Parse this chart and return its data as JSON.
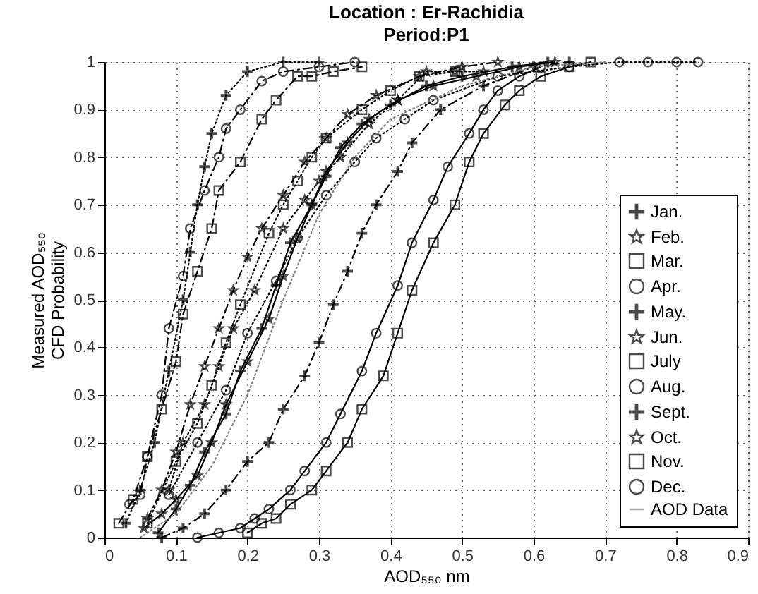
{
  "chart_data": {
    "type": "line",
    "title": "Location : Er-Rachidia",
    "subtitle": "Period:P1",
    "xlabel": "AOD₅₅₀ nm",
    "ylabel": "Measured AOD₅₅₀\nCFD Probability",
    "xlim": [
      0,
      0.9
    ],
    "ylim": [
      0,
      1
    ],
    "xticks": [
      0,
      0.1,
      0.2,
      0.3,
      0.4,
      0.5,
      0.6,
      0.7,
      0.8,
      0.9
    ],
    "yticks": [
      0,
      0.1,
      0.2,
      0.3,
      0.4,
      0.5,
      0.6,
      0.7,
      0.8,
      0.9,
      1
    ],
    "grid": true,
    "legend": "bottom right",
    "series": [
      {
        "name": "Jan.",
        "color": "#000000",
        "marker": "cross",
        "line_style": "dotted",
        "x": [
          0.03,
          0.05,
          0.07,
          0.09,
          0.11,
          0.12,
          0.13,
          0.14,
          0.15,
          0.17,
          0.2,
          0.25,
          0.3
        ],
        "values": [
          0.03,
          0.1,
          0.2,
          0.35,
          0.5,
          0.6,
          0.7,
          0.78,
          0.85,
          0.93,
          0.98,
          1.0,
          1.0
        ]
      },
      {
        "name": "Feb.",
        "color": "#000000",
        "marker": "star",
        "line_style": "dotted",
        "x": [
          0.09,
          0.11,
          0.14,
          0.16,
          0.18,
          0.21,
          0.25,
          0.28,
          0.3,
          0.33,
          0.37,
          0.41,
          0.45,
          0.49,
          0.53
        ],
        "values": [
          0.1,
          0.2,
          0.28,
          0.36,
          0.44,
          0.52,
          0.65,
          0.71,
          0.75,
          0.8,
          0.87,
          0.92,
          0.98,
          0.98,
          0.98
        ]
      },
      {
        "name": "Mar.",
        "color": "#000000",
        "marker": "square",
        "line_style": "dotted",
        "x": [
          0.06,
          0.1,
          0.13,
          0.15,
          0.17,
          0.19,
          0.23,
          0.25,
          0.27,
          0.29,
          0.31,
          0.36,
          0.4,
          0.44,
          0.49
        ],
        "values": [
          0.03,
          0.16,
          0.24,
          0.32,
          0.41,
          0.49,
          0.64,
          0.7,
          0.75,
          0.8,
          0.84,
          0.9,
          0.94,
          0.97,
          0.98
        ]
      },
      {
        "name": "Apr.",
        "color": "#000000",
        "marker": "circle",
        "line_style": "dotted",
        "x": [
          0.09,
          0.13,
          0.17,
          0.2,
          0.24,
          0.27,
          0.31,
          0.35,
          0.38,
          0.42,
          0.46,
          0.55,
          0.65,
          0.72,
          0.76,
          0.8,
          0.83
        ],
        "values": [
          0.09,
          0.2,
          0.31,
          0.43,
          0.54,
          0.63,
          0.72,
          0.79,
          0.84,
          0.88,
          0.92,
          0.97,
          0.99,
          1.0,
          1.0,
          1.0,
          1.0
        ]
      },
      {
        "name": "May.",
        "color": "#000000",
        "marker": "cross",
        "line_style": "solid",
        "x": [
          0.075,
          0.1,
          0.12,
          0.14,
          0.17,
          0.19,
          0.22,
          0.24,
          0.26,
          0.29,
          0.31,
          0.33,
          0.36,
          0.4,
          0.45,
          0.5,
          0.57,
          0.62
        ],
        "values": [
          0.01,
          0.06,
          0.11,
          0.18,
          0.26,
          0.35,
          0.44,
          0.53,
          0.62,
          0.7,
          0.76,
          0.82,
          0.87,
          0.91,
          0.95,
          0.97,
          0.99,
          1.0
        ]
      },
      {
        "name": "Jun.",
        "color": "#000000",
        "marker": "star",
        "line_style": "solid",
        "x": [
          0.055,
          0.08,
          0.1,
          0.13,
          0.15,
          0.17,
          0.2,
          0.23,
          0.25,
          0.27,
          0.29,
          0.31,
          0.34,
          0.37,
          0.41,
          0.46,
          0.52,
          0.58,
          0.63
        ],
        "values": [
          0.02,
          0.05,
          0.08,
          0.13,
          0.2,
          0.28,
          0.37,
          0.46,
          0.55,
          0.63,
          0.7,
          0.77,
          0.83,
          0.88,
          0.92,
          0.95,
          0.97,
          0.99,
          1.0
        ]
      },
      {
        "name": "July",
        "color": "#000000",
        "marker": "square",
        "line_style": "solid",
        "x": [
          0.2,
          0.22,
          0.24,
          0.26,
          0.29,
          0.31,
          0.34,
          0.36,
          0.39,
          0.41,
          0.43,
          0.46,
          0.49,
          0.51,
          0.53,
          0.56,
          0.58,
          0.61,
          0.65,
          0.68
        ],
        "values": [
          0.01,
          0.03,
          0.04,
          0.07,
          0.1,
          0.14,
          0.2,
          0.27,
          0.34,
          0.43,
          0.52,
          0.62,
          0.7,
          0.79,
          0.85,
          0.91,
          0.94,
          0.97,
          0.99,
          1.0
        ]
      },
      {
        "name": "Aug.",
        "color": "#000000",
        "marker": "circle",
        "line_style": "solid",
        "x": [
          0.13,
          0.16,
          0.19,
          0.21,
          0.23,
          0.26,
          0.28,
          0.31,
          0.33,
          0.36,
          0.38,
          0.41,
          0.43,
          0.46,
          0.48,
          0.51,
          0.53,
          0.55,
          0.58,
          0.61
        ],
        "values": [
          0.0,
          0.01,
          0.02,
          0.04,
          0.06,
          0.1,
          0.14,
          0.2,
          0.26,
          0.35,
          0.43,
          0.53,
          0.62,
          0.71,
          0.78,
          0.85,
          0.9,
          0.94,
          0.97,
          0.99
        ]
      },
      {
        "name": "Sept.",
        "color": "#000000",
        "marker": "cross",
        "line_style": "dashed",
        "x": [
          0.08,
          0.11,
          0.14,
          0.17,
          0.2,
          0.23,
          0.25,
          0.28,
          0.3,
          0.32,
          0.34,
          0.36,
          0.38,
          0.41,
          0.43,
          0.47,
          0.53,
          0.6,
          0.65
        ],
        "values": [
          0.0,
          0.02,
          0.05,
          0.1,
          0.16,
          0.2,
          0.27,
          0.34,
          0.41,
          0.49,
          0.56,
          0.64,
          0.7,
          0.77,
          0.83,
          0.9,
          0.95,
          0.99,
          1.0
        ]
      },
      {
        "name": "Oct.",
        "color": "#000000",
        "marker": "star",
        "line_style": "dashed",
        "x": [
          0.06,
          0.08,
          0.1,
          0.12,
          0.14,
          0.16,
          0.18,
          0.2,
          0.22,
          0.25,
          0.28,
          0.31,
          0.34,
          0.38,
          0.44,
          0.5,
          0.55
        ],
        "values": [
          0.04,
          0.1,
          0.18,
          0.28,
          0.36,
          0.44,
          0.52,
          0.59,
          0.65,
          0.72,
          0.79,
          0.84,
          0.89,
          0.93,
          0.97,
          0.99,
          1.0
        ]
      },
      {
        "name": "Nov.",
        "color": "#000000",
        "marker": "square",
        "line_style": "dashed",
        "x": [
          0.02,
          0.04,
          0.06,
          0.08,
          0.1,
          0.11,
          0.13,
          0.15,
          0.16,
          0.19,
          0.22,
          0.24,
          0.27,
          0.29,
          0.32,
          0.36
        ],
        "values": [
          0.03,
          0.08,
          0.17,
          0.27,
          0.37,
          0.47,
          0.56,
          0.65,
          0.73,
          0.79,
          0.88,
          0.92,
          0.97,
          0.97,
          0.98,
          0.99
        ]
      },
      {
        "name": "Dec.",
        "color": "#000000",
        "marker": "circle",
        "line_style": "dashed",
        "x": [
          0.035,
          0.05,
          0.06,
          0.08,
          0.09,
          0.11,
          0.12,
          0.14,
          0.16,
          0.17,
          0.19,
          0.22,
          0.25,
          0.3,
          0.35
        ],
        "values": [
          0.07,
          0.09,
          0.17,
          0.3,
          0.44,
          0.55,
          0.65,
          0.73,
          0.8,
          0.86,
          0.9,
          0.96,
          0.98,
          0.99,
          1.0
        ]
      },
      {
        "name": "AOD Data",
        "color": "#808080",
        "marker": "none",
        "line_style": "dotted",
        "x": [
          0.05,
          0.1,
          0.15,
          0.2,
          0.25,
          0.3,
          0.35,
          0.4,
          0.5,
          0.6,
          0.7
        ],
        "values": [
          0.0,
          0.05,
          0.15,
          0.3,
          0.5,
          0.68,
          0.8,
          0.88,
          0.95,
          0.99,
          1.0
        ]
      }
    ]
  }
}
